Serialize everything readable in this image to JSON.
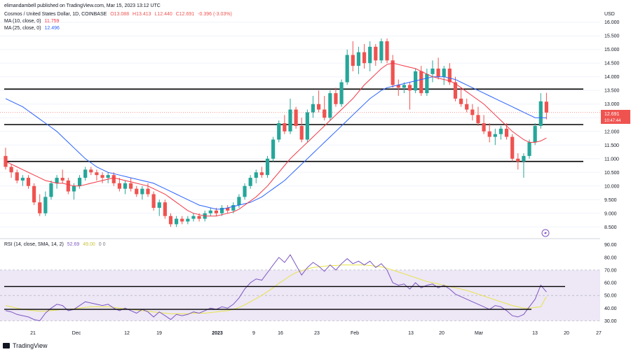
{
  "header": {
    "publisher": "elimandambell published on TradingView.com, Mar 15, 2023 13:12 UTC",
    "symbol": "Cosmos / United States Dollar, 1D, COINBASE",
    "ohlc": {
      "o": "O13.088",
      "h": "H13.413",
      "l": "L12.440",
      "c": "C12.691",
      "chg": "-0.396 (-3.03%)"
    },
    "ma10_label": "MA (10, close, 0)",
    "ma10_value": "11.759",
    "ma25_label": "MA (25, close, 0)",
    "ma25_value": "12.496",
    "rsi_label": "RSI (14, close, SMA, 14, 2)",
    "rsi_value": "52.69",
    "rsi_sma_value": "49.00",
    "rsi_extra": "0 0"
  },
  "price_axis": {
    "currency": "USD",
    "price_tag": "12.691",
    "countdown_tag": "10:47:44"
  },
  "watermark": "TradingView",
  "colors": {
    "up": "#26a69a",
    "down": "#ef5350",
    "ma10": "#f23645",
    "ma25": "#2962ff",
    "rsi": "#7e57c2",
    "rsi_sma": "#e8e44a",
    "rsi_band": "#ede7f6"
  },
  "chart_data": [
    {
      "type": "candlestick",
      "title": "Cosmos / United States Dollar, 1D, COINBASE",
      "ylim": [
        8.2,
        16.3
      ],
      "y_ticks": [
        "16.000",
        "15.500",
        "15.000",
        "14.500",
        "14.000",
        "13.500",
        "13.000",
        "12.500",
        "12.000",
        "11.500",
        "11.000",
        "10.500",
        "10.000",
        "9.500",
        "9.000",
        "8.500"
      ],
      "x_ticks": [
        "21",
        "Dec",
        "12",
        "19",
        "2023",
        "9",
        "16",
        "23",
        "Feb",
        "13",
        "20",
        "Mar",
        "13",
        "20",
        "27"
      ],
      "candles": [
        [
          11.1,
          11.4,
          10.6,
          10.7
        ],
        [
          10.7,
          10.8,
          10.3,
          10.5
        ],
        [
          10.5,
          10.6,
          10.1,
          10.2
        ],
        [
          10.2,
          10.4,
          10.0,
          10.3
        ],
        [
          10.3,
          10.4,
          9.9,
          10.0
        ],
        [
          10.0,
          10.1,
          9.3,
          9.4
        ],
        [
          9.4,
          9.7,
          8.9,
          9.0
        ],
        [
          9.0,
          9.8,
          8.9,
          9.6
        ],
        [
          9.6,
          10.2,
          9.5,
          10.1
        ],
        [
          10.1,
          10.4,
          9.9,
          10.3
        ],
        [
          10.3,
          10.6,
          10.1,
          10.2
        ],
        [
          10.2,
          10.3,
          9.7,
          9.8
        ],
        [
          9.8,
          10.1,
          9.5,
          10.0
        ],
        [
          10.0,
          10.4,
          9.9,
          10.3
        ],
        [
          10.3,
          10.7,
          10.2,
          10.6
        ],
        [
          10.6,
          10.7,
          10.4,
          10.5
        ],
        [
          10.5,
          10.6,
          10.2,
          10.4
        ],
        [
          10.4,
          10.5,
          10.1,
          10.3
        ],
        [
          10.3,
          10.5,
          10.1,
          10.4
        ],
        [
          10.4,
          10.5,
          10.0,
          10.1
        ],
        [
          10.1,
          10.3,
          9.8,
          9.9
        ],
        [
          9.9,
          10.2,
          9.7,
          10.1
        ],
        [
          10.1,
          10.3,
          9.8,
          9.9
        ],
        [
          9.9,
          10.0,
          9.6,
          9.7
        ],
        [
          9.7,
          10.0,
          9.5,
          9.9
        ],
        [
          9.9,
          10.1,
          9.6,
          9.7
        ],
        [
          9.7,
          9.8,
          9.1,
          9.2
        ],
        [
          9.2,
          9.5,
          8.9,
          9.4
        ],
        [
          9.4,
          9.5,
          8.8,
          8.9
        ],
        [
          8.9,
          9.0,
          8.5,
          8.6
        ],
        [
          8.6,
          8.9,
          8.5,
          8.8
        ],
        [
          8.8,
          8.9,
          8.6,
          8.7
        ],
        [
          8.7,
          8.9,
          8.6,
          8.8
        ],
        [
          8.8,
          9.0,
          8.7,
          8.9
        ],
        [
          8.9,
          9.0,
          8.7,
          8.8
        ],
        [
          8.8,
          9.1,
          8.7,
          9.0
        ],
        [
          9.0,
          9.2,
          8.9,
          9.1
        ],
        [
          9.1,
          9.2,
          8.9,
          9.0
        ],
        [
          9.0,
          9.3,
          8.9,
          9.2
        ],
        [
          9.2,
          9.3,
          9.0,
          9.1
        ],
        [
          9.1,
          9.4,
          9.0,
          9.3
        ],
        [
          9.3,
          9.7,
          9.2,
          9.6
        ],
        [
          9.6,
          10.1,
          9.5,
          10.0
        ],
        [
          10.0,
          10.4,
          9.9,
          10.3
        ],
        [
          10.3,
          10.6,
          10.1,
          10.5
        ],
        [
          10.5,
          10.7,
          10.3,
          10.4
        ],
        [
          10.4,
          11.1,
          10.3,
          11.0
        ],
        [
          11.0,
          11.8,
          10.9,
          11.7
        ],
        [
          11.7,
          12.4,
          11.6,
          12.3
        ],
        [
          12.3,
          12.6,
          11.9,
          12.0
        ],
        [
          12.0,
          13.2,
          11.9,
          12.8
        ],
        [
          12.8,
          12.9,
          12.1,
          12.2
        ],
        [
          12.2,
          12.5,
          11.6,
          11.7
        ],
        [
          11.7,
          12.8,
          11.6,
          12.7
        ],
        [
          12.7,
          13.3,
          12.5,
          13.0
        ],
        [
          13.0,
          13.5,
          12.7,
          12.8
        ],
        [
          12.8,
          13.3,
          12.4,
          12.5
        ],
        [
          12.5,
          13.5,
          12.4,
          13.4
        ],
        [
          13.4,
          13.6,
          12.9,
          13.0
        ],
        [
          13.0,
          13.9,
          12.9,
          13.8
        ],
        [
          13.8,
          15.0,
          13.7,
          14.8
        ],
        [
          14.8,
          15.3,
          14.2,
          14.4
        ],
        [
          14.4,
          15.1,
          14.1,
          14.9
        ],
        [
          14.9,
          15.2,
          14.3,
          14.5
        ],
        [
          14.5,
          15.3,
          14.2,
          15.1
        ],
        [
          15.1,
          15.2,
          14.4,
          14.6
        ],
        [
          14.6,
          15.4,
          14.5,
          15.3
        ],
        [
          15.3,
          15.4,
          14.5,
          14.6
        ],
        [
          14.6,
          14.8,
          13.6,
          13.7
        ],
        [
          13.7,
          13.9,
          13.3,
          13.6
        ],
        [
          13.6,
          13.8,
          13.4,
          13.7
        ],
        [
          13.7,
          13.8,
          12.8,
          13.5
        ],
        [
          13.5,
          14.3,
          13.4,
          14.2
        ],
        [
          14.2,
          14.4,
          13.3,
          13.4
        ],
        [
          13.4,
          14.3,
          13.3,
          14.1
        ],
        [
          14.1,
          14.6,
          13.8,
          14.3
        ],
        [
          14.3,
          14.7,
          13.9,
          14.0
        ],
        [
          14.0,
          14.4,
          13.7,
          14.3
        ],
        [
          14.3,
          14.5,
          13.7,
          13.8
        ],
        [
          13.8,
          14.0,
          13.1,
          13.2
        ],
        [
          13.2,
          13.6,
          12.9,
          13.0
        ],
        [
          13.0,
          13.2,
          12.7,
          12.8
        ],
        [
          12.8,
          13.0,
          12.4,
          12.6
        ],
        [
          12.6,
          12.9,
          12.2,
          12.3
        ],
        [
          12.3,
          12.6,
          11.9,
          12.0
        ],
        [
          12.0,
          12.3,
          11.6,
          11.8
        ],
        [
          11.8,
          12.1,
          11.5,
          11.9
        ],
        [
          11.9,
          12.2,
          11.7,
          12.1
        ],
        [
          12.1,
          12.3,
          11.7,
          11.8
        ],
        [
          11.8,
          11.9,
          10.9,
          11.0
        ],
        [
          11.0,
          11.2,
          10.6,
          10.9
        ],
        [
          10.9,
          11.2,
          10.3,
          11.1
        ],
        [
          11.1,
          11.7,
          11.0,
          11.6
        ],
        [
          11.6,
          12.3,
          11.5,
          12.2
        ],
        [
          12.2,
          13.4,
          12.1,
          13.1
        ],
        [
          13.088,
          13.413,
          12.44,
          12.691
        ]
      ],
      "ma10": [
        10.9,
        10.8,
        10.7,
        10.6,
        10.5,
        10.4,
        10.3,
        10.2,
        10.15,
        10.1,
        10.1,
        10.05,
        10.0,
        10.0,
        10.05,
        10.1,
        10.15,
        10.2,
        10.25,
        10.3,
        10.25,
        10.2,
        10.15,
        10.1,
        10.05,
        10.0,
        9.9,
        9.8,
        9.7,
        9.55,
        9.4,
        9.25,
        9.1,
        9.0,
        8.95,
        8.9,
        8.9,
        8.9,
        8.95,
        9.0,
        9.05,
        9.15,
        9.3,
        9.45,
        9.6,
        9.8,
        10.0,
        10.25,
        10.5,
        10.75,
        11.0,
        11.2,
        11.4,
        11.6,
        11.8,
        12.0,
        12.2,
        12.4,
        12.6,
        12.8,
        13.0,
        13.2,
        13.45,
        13.7,
        13.9,
        14.1,
        14.3,
        14.45,
        14.5,
        14.45,
        14.4,
        14.35,
        14.3,
        14.2,
        14.1,
        14.0,
        13.95,
        13.9,
        13.85,
        13.75,
        13.6,
        13.45,
        13.3,
        13.15,
        13.0,
        12.8,
        12.6,
        12.4,
        12.2,
        12.0,
        11.85,
        11.7,
        11.6,
        11.6,
        11.65,
        11.759
      ],
      "ma25": [
        13.2,
        13.1,
        13.0,
        12.9,
        12.75,
        12.6,
        12.45,
        12.3,
        12.15,
        12.0,
        11.8,
        11.6,
        11.4,
        11.2,
        11.0,
        10.85,
        10.7,
        10.6,
        10.5,
        10.45,
        10.4,
        10.35,
        10.3,
        10.25,
        10.2,
        10.15,
        10.1,
        10.0,
        9.9,
        9.8,
        9.7,
        9.6,
        9.5,
        9.4,
        9.3,
        9.25,
        9.2,
        9.15,
        9.15,
        9.2,
        9.25,
        9.3,
        9.35,
        9.4,
        9.5,
        9.6,
        9.75,
        9.9,
        10.05,
        10.2,
        10.4,
        10.6,
        10.8,
        11.0,
        11.2,
        11.4,
        11.6,
        11.8,
        12.0,
        12.2,
        12.4,
        12.6,
        12.8,
        13.0,
        13.2,
        13.35,
        13.5,
        13.6,
        13.65,
        13.7,
        13.75,
        13.8,
        13.85,
        13.9,
        13.95,
        14.0,
        14.0,
        14.0,
        13.95,
        13.9,
        13.8,
        13.7,
        13.6,
        13.5,
        13.4,
        13.3,
        13.2,
        13.1,
        13.0,
        12.9,
        12.8,
        12.7,
        12.6,
        12.5,
        12.5,
        12.496
      ],
      "horizontal_lines": [
        13.55,
        12.25,
        10.9
      ]
    },
    {
      "type": "line",
      "title": "RSI (14, close, SMA, 14, 2)",
      "ylim": [
        28,
        92
      ],
      "y_ticks": [
        "90.00",
        "80.00",
        "70.00",
        "60.00",
        "50.00",
        "40.00",
        "30.00"
      ],
      "band": [
        30,
        70
      ],
      "midline": 50,
      "rsi": [
        38,
        37,
        35,
        34,
        33,
        31,
        30,
        36,
        40,
        43,
        42,
        38,
        39,
        42,
        45,
        44,
        43,
        42,
        43,
        40,
        38,
        40,
        38,
        36,
        39,
        37,
        33,
        37,
        34,
        31,
        35,
        34,
        35,
        37,
        36,
        38,
        40,
        39,
        41,
        40,
        43,
        48,
        55,
        60,
        63,
        62,
        68,
        74,
        80,
        76,
        82,
        74,
        66,
        72,
        76,
        73,
        69,
        74,
        70,
        75,
        79,
        75,
        77,
        74,
        77,
        72,
        75,
        70,
        60,
        58,
        59,
        55,
        60,
        56,
        58,
        59,
        56,
        58,
        55,
        51,
        49,
        47,
        45,
        43,
        41,
        39,
        42,
        41,
        38,
        34,
        33,
        35,
        41,
        47,
        58,
        52.69
      ],
      "rsi_sma": [
        42,
        41,
        40,
        39,
        38.5,
        38,
        37.5,
        37.5,
        38,
        38.5,
        39,
        39,
        39.5,
        40,
        40.5,
        41,
        41,
        41,
        41,
        40.5,
        40,
        39.5,
        39,
        38.5,
        38,
        37.5,
        37,
        36.5,
        36,
        35.5,
        35.5,
        35.5,
        35.5,
        36,
        36,
        36,
        36.5,
        37,
        37.5,
        38,
        39,
        40.5,
        42.5,
        45,
        47.5,
        50,
        53,
        56,
        59.5,
        62.5,
        65.5,
        68,
        69.5,
        71,
        72,
        72.5,
        73,
        73.5,
        73.5,
        74,
        74,
        74,
        74,
        74,
        73.5,
        73,
        72.5,
        71.5,
        70,
        68.5,
        67,
        65.5,
        64,
        62.5,
        61,
        60,
        59,
        58,
        57,
        56,
        55,
        54,
        52.5,
        51,
        49.5,
        48,
        46.5,
        45,
        43.5,
        42,
        41,
        40,
        40,
        40.5,
        41,
        49.0
      ],
      "horizontal_lines": [
        57,
        39
      ]
    }
  ]
}
